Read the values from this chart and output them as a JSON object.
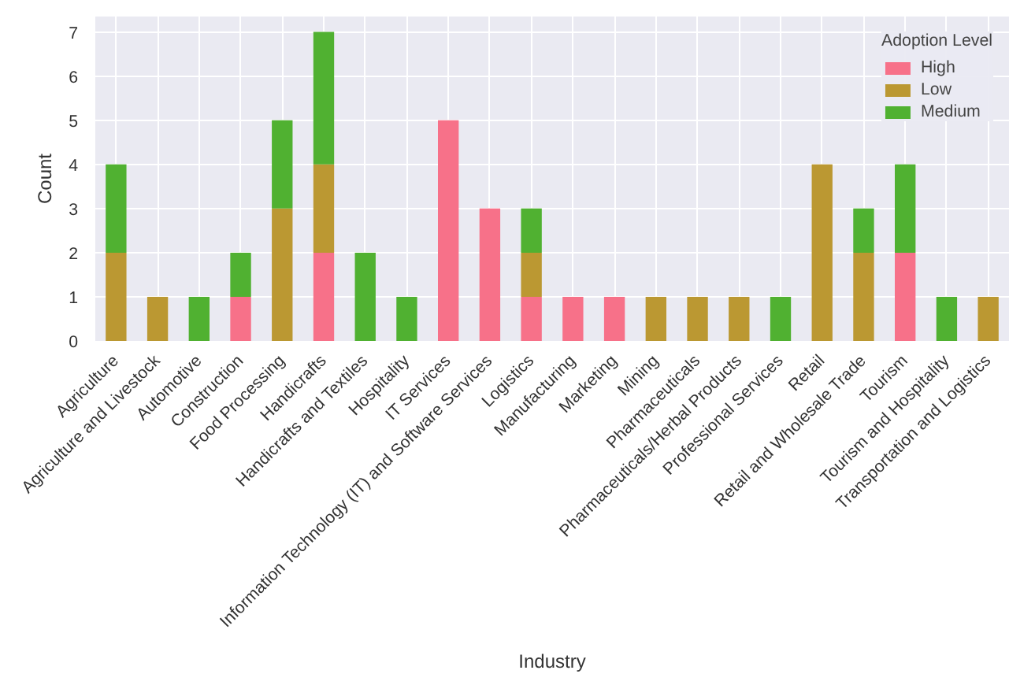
{
  "chart_data": {
    "type": "bar",
    "stacked": true,
    "xlabel": "Industry",
    "ylabel": "Count",
    "legend_title": "Adoption Level",
    "legend": "top right",
    "grid": true,
    "categories": [
      "Agriculture",
      "Agriculture and Livestock",
      "Automotive",
      "Construction",
      "Food Processing",
      "Handicrafts",
      "Handicrafts and Textiles",
      "Hospitality",
      "IT Services",
      "Information Technology (IT) and Software Services",
      "Logistics",
      "Manufacturing",
      "Marketing",
      "Mining",
      "Pharmaceuticals",
      "Pharmaceuticals/Herbal Products",
      "Professional Services",
      "Retail",
      "Retail and Wholesale Trade",
      "Tourism",
      "Tourism and Hospitality",
      "Transportation and Logistics"
    ],
    "ylim": [
      0,
      7.35
    ],
    "yticks": [
      0,
      1,
      2,
      3,
      4,
      5,
      6,
      7
    ],
    "series": [
      {
        "name": "High",
        "color": "#f77189",
        "values": [
          0,
          0,
          0,
          1,
          0,
          2,
          0,
          0,
          5,
          3,
          1,
          1,
          1,
          0,
          0,
          0,
          0,
          0,
          0,
          2,
          0,
          0
        ]
      },
      {
        "name": "Low",
        "color": "#bb9832",
        "values": [
          2,
          1,
          0,
          0,
          3,
          2,
          0,
          0,
          0,
          0,
          1,
          0,
          0,
          1,
          1,
          1,
          0,
          4,
          2,
          0,
          0,
          1
        ]
      },
      {
        "name": "Medium",
        "color": "#50b131",
        "values": [
          2,
          0,
          1,
          1,
          2,
          3,
          2,
          1,
          0,
          0,
          1,
          0,
          0,
          0,
          0,
          0,
          1,
          0,
          1,
          2,
          1,
          0
        ]
      }
    ]
  }
}
